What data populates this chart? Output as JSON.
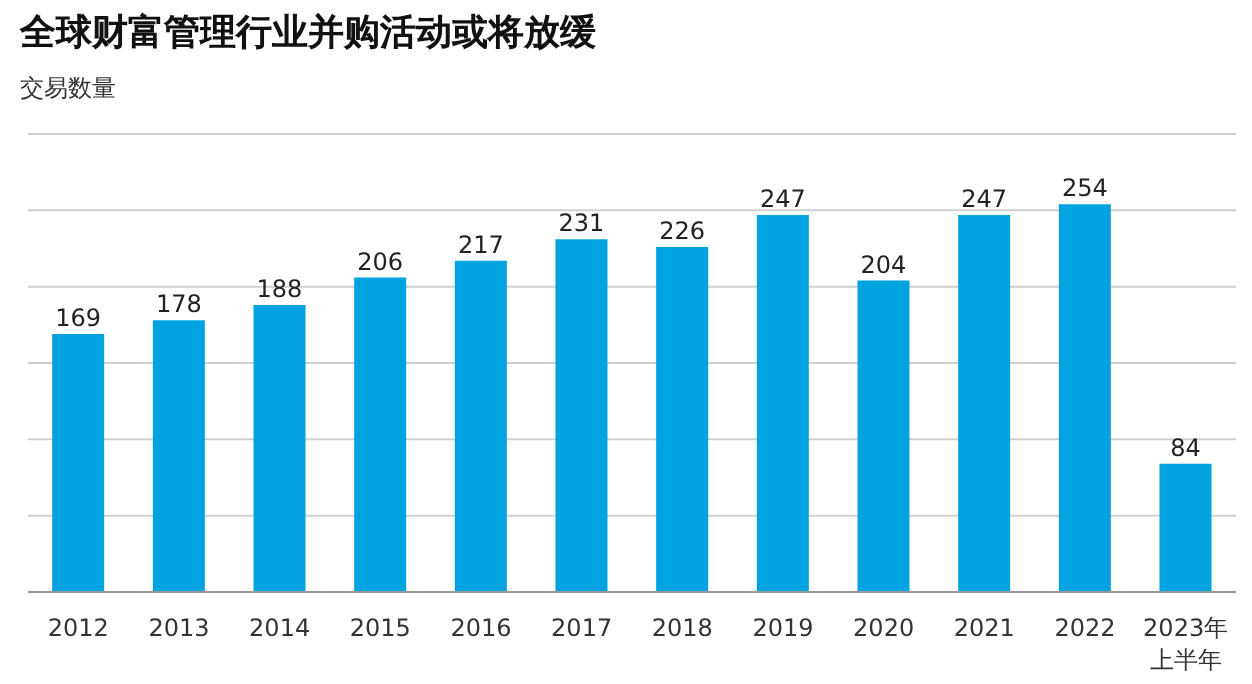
{
  "chart_data": {
    "type": "bar",
    "title": "全球财富管理行业并购活动或将放缓",
    "ylabel": "交易数量",
    "categories": [
      "2012",
      "2013",
      "2014",
      "2015",
      "2016",
      "2017",
      "2018",
      "2019",
      "2020",
      "2021",
      "2022",
      "2023年上半年"
    ],
    "values": [
      169,
      178,
      188,
      206,
      217,
      231,
      226,
      247,
      204,
      247,
      254,
      84
    ],
    "color": "#00a3e0",
    "ylim": [
      0,
      300
    ],
    "yticks": [
      {
        "value": 0,
        "label": null
      },
      {
        "value": 50,
        "label": null
      },
      {
        "value": 100,
        "label": null
      },
      {
        "value": 150,
        "label": null
      },
      {
        "value": 200,
        "label": null
      },
      {
        "value": 250,
        "label": null
      },
      {
        "value": 300,
        "label": null
      }
    ],
    "grid": "y",
    "data_labels": true,
    "tick_labels": "x"
  }
}
